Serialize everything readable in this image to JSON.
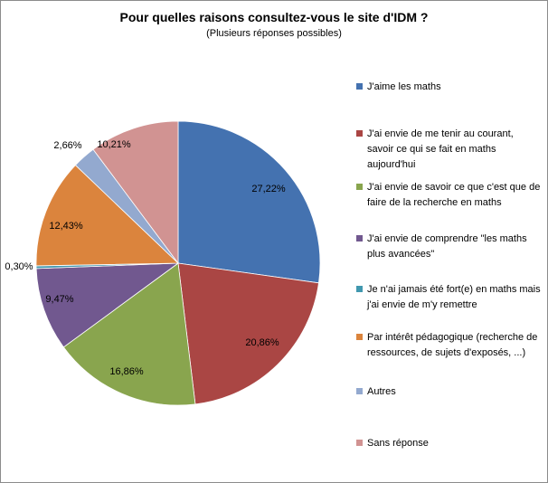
{
  "chart_data": {
    "type": "pie",
    "title": "Pour quelles raisons consultez-vous le site d'IDM ?",
    "subtitle": "(Plusieurs réponses possibles)",
    "legend_position": "right",
    "slices": [
      {
        "label": "J'aime les maths",
        "value": 27.22,
        "value_label": "27,22%",
        "color": "#4472b0"
      },
      {
        "label": "J'ai envie de me tenir au courant, savoir ce qui se fait en maths aujourd'hui",
        "value": 20.86,
        "value_label": "20,86%",
        "color": "#aa4644"
      },
      {
        "label": "J'ai envie de savoir ce que c'est que de faire de la recherche en maths",
        "value": 16.86,
        "value_label": "16,86%",
        "color": "#89a54e"
      },
      {
        "label": "J'ai envie de comprendre \"les maths plus avancées\"",
        "value": 9.47,
        "value_label": "9,47%",
        "color": "#71588f"
      },
      {
        "label": "Je n'ai jamais été fort(e) en maths mais j'ai envie de m'y remettre",
        "value": 0.3,
        "value_label": "0,30%",
        "color": "#4198af"
      },
      {
        "label": "Par intérêt pédagogique (recherche de ressources, de sujets d'exposés, ...)",
        "value": 12.43,
        "value_label": "12,43%",
        "color": "#db843d"
      },
      {
        "label": "Autres",
        "value": 2.66,
        "value_label": "2,66%",
        "color": "#93a9cf"
      },
      {
        "label": "Sans réponse",
        "value": 10.21,
        "value_label": "10,21%",
        "color": "#d19392"
      }
    ]
  }
}
